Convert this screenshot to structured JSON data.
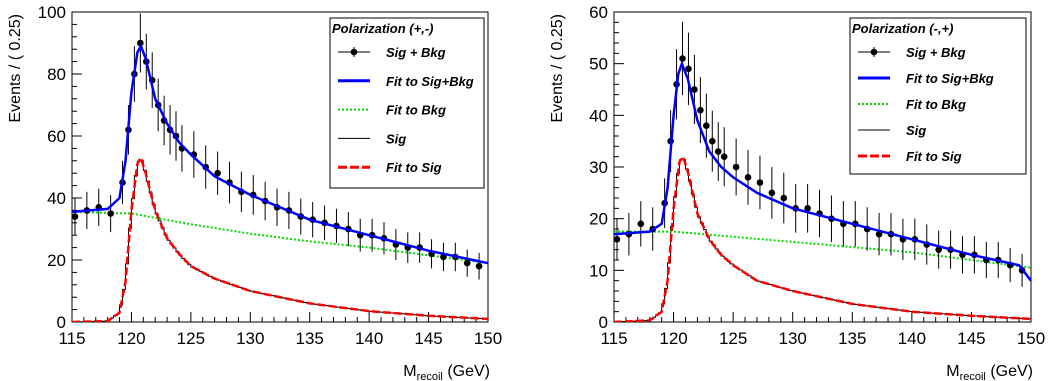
{
  "chart_data": [
    {
      "type": "line",
      "xlabel": "M",
      "xlabel_sub": "recoil",
      "xlabel_unit": " (GeV)",
      "ylabel": "Events / ( 0.25)",
      "xlim": [
        115,
        150
      ],
      "ylim": [
        0,
        100
      ],
      "xticks": [
        "115",
        "120",
        "125",
        "130",
        "135",
        "140",
        "145",
        "150"
      ],
      "yticks": [
        "0",
        "20",
        "40",
        "60",
        "80",
        "100"
      ],
      "legend_title": "Polarization (+,-)",
      "legend_position": "top-right",
      "legend": [
        "Sig + Bkg",
        "Fit to Sig+Bkg",
        "Fit to Bkg",
        "Sig",
        "Fit to Sig"
      ],
      "colors": {
        "data": "#000000",
        "total_fit": "#0000ff",
        "bkg_fit": "#00dd00",
        "sig_hist": "#000000",
        "sig_fit": "#ff0000"
      },
      "signal_peak": {
        "x": 120.8,
        "y": 53
      },
      "total_peak": {
        "x": 120.8,
        "y": 89
      },
      "background_fit": {
        "x": [
          115,
          120,
          125,
          130,
          135,
          140,
          145,
          150
        ],
        "y": [
          35.5,
          35,
          31.5,
          28.5,
          26,
          24,
          21.5,
          19
        ]
      },
      "total_fit": {
        "x": [
          115,
          118,
          119,
          119.5,
          120,
          120.5,
          120.8,
          121.2,
          122,
          123,
          124,
          125,
          127,
          130,
          135,
          140,
          145,
          150
        ],
        "y": [
          35.5,
          36.5,
          40,
          52,
          74,
          87,
          89,
          85,
          72,
          64,
          58,
          54,
          47,
          41,
          33,
          28,
          23,
          19
        ]
      },
      "signal_fit": {
        "x": [
          115,
          118,
          119,
          119.5,
          120,
          120.5,
          120.8,
          121.2,
          122,
          123,
          124,
          125,
          127,
          130,
          135,
          140,
          145,
          150
        ],
        "y": [
          0,
          0.3,
          3,
          13,
          36,
          51,
          53,
          48,
          36,
          27,
          22,
          18,
          14,
          10,
          6,
          3.5,
          2,
          1
        ]
      },
      "data_points": {
        "x": [
          115.25,
          116.25,
          117.25,
          118.25,
          119.25,
          119.75,
          120.25,
          120.75,
          121.25,
          121.75,
          122.25,
          122.75,
          123.25,
          123.75,
          124.25,
          125.25,
          126.25,
          127.25,
          128.25,
          129.25,
          130.25,
          131.25,
          132.25,
          133.25,
          134.25,
          135.25,
          136.25,
          137.25,
          138.25,
          139.25,
          140.25,
          141.25,
          142.25,
          143.25,
          144.25,
          145.25,
          146.25,
          147.25,
          148.25,
          149.25
        ],
        "y": [
          34,
          36,
          37,
          35,
          45,
          62,
          80,
          90,
          84,
          78,
          70,
          65,
          62,
          60,
          56,
          54,
          50,
          48,
          45,
          42,
          41,
          39,
          37,
          36,
          34,
          33,
          32,
          31,
          30,
          28,
          28,
          27,
          25,
          24,
          24,
          22,
          21,
          21,
          19,
          18
        ],
        "err": [
          6,
          6,
          6,
          6,
          7,
          8,
          9,
          9.5,
          9,
          9,
          8.5,
          8,
          8,
          8,
          7.5,
          7.5,
          7,
          7,
          6.7,
          6.5,
          6.4,
          6.2,
          6,
          6,
          5.8,
          5.7,
          5.6,
          5.5,
          5.5,
          5.3,
          5.3,
          5.2,
          5,
          4.9,
          4.9,
          4.7,
          4.6,
          4.6,
          4.4,
          4.3
        ]
      }
    },
    {
      "type": "line",
      "xlabel": "M",
      "xlabel_sub": "recoil",
      "xlabel_unit": " (GeV)",
      "ylabel": "Events / ( 0.25)",
      "xlim": [
        115,
        150
      ],
      "ylim": [
        0,
        60
      ],
      "xticks": [
        "115",
        "120",
        "125",
        "130",
        "135",
        "140",
        "145",
        "150"
      ],
      "yticks": [
        "0",
        "10",
        "20",
        "30",
        "40",
        "50",
        "60"
      ],
      "legend_title": "Polarization (-,+)",
      "legend_position": "top-right",
      "legend": [
        "Sig + Bkg",
        "Fit to Sig+Bkg",
        "Fit to Bkg",
        "Sig",
        "Fit to Sig"
      ],
      "colors": {
        "data": "#000000",
        "total_fit": "#0000ff",
        "bkg_fit": "#00dd00",
        "sig_hist": "#000000",
        "sig_fit": "#ff0000"
      },
      "signal_peak": {
        "x": 120.8,
        "y": 32
      },
      "total_peak": {
        "x": 120.7,
        "y": 50
      },
      "background_fit": {
        "x": [
          115,
          120,
          125,
          130,
          135,
          140,
          145,
          150
        ],
        "y": [
          17.5,
          17.5,
          16.5,
          15.5,
          14.5,
          13.5,
          12,
          10.5
        ]
      },
      "total_fit": {
        "x": [
          115,
          118,
          119,
          119.5,
          120,
          120.4,
          120.7,
          121.2,
          122,
          123,
          124,
          125,
          127,
          130,
          135,
          140,
          145,
          149,
          150
        ],
        "y": [
          17,
          17.5,
          19,
          26,
          40,
          48,
          50,
          47,
          39,
          33,
          30,
          28,
          25,
          22,
          19,
          16,
          13,
          11,
          8
        ]
      },
      "signal_fit": {
        "x": [
          115,
          118,
          119,
          119.5,
          120,
          120.5,
          120.8,
          121.2,
          122,
          123,
          124,
          125,
          127,
          130,
          135,
          140,
          145,
          150
        ],
        "y": [
          0,
          0.3,
          2,
          8,
          22,
          31,
          32,
          29,
          21,
          16,
          13,
          11,
          8,
          6,
          3.5,
          2,
          1.2,
          0.6
        ]
      },
      "data_points": {
        "x": [
          115.25,
          116.25,
          117.25,
          118.25,
          119.25,
          119.75,
          120.25,
          120.75,
          121.25,
          121.75,
          122.25,
          122.75,
          123.25,
          123.75,
          124.25,
          125.25,
          126.25,
          127.25,
          128.25,
          129.25,
          130.25,
          131.25,
          132.25,
          133.25,
          134.25,
          135.25,
          136.25,
          137.25,
          138.25,
          139.25,
          140.25,
          141.25,
          142.25,
          143.25,
          144.25,
          145.25,
          146.25,
          147.25,
          148.25,
          149.25
        ],
        "y": [
          16,
          17,
          19,
          18,
          23,
          35,
          46,
          51,
          49,
          45,
          41,
          38,
          35,
          33,
          32,
          30,
          28,
          27,
          25,
          24,
          22,
          22,
          21,
          20,
          19,
          19,
          18,
          17,
          17,
          16,
          16,
          15,
          14,
          14,
          13,
          13,
          12,
          12,
          11,
          10
        ],
        "err": [
          4,
          4.1,
          4.4,
          4.2,
          4.8,
          6,
          6.8,
          7.1,
          7,
          6.7,
          6.4,
          6.2,
          5.9,
          5.7,
          5.7,
          5.5,
          5.3,
          5.2,
          5,
          4.9,
          4.7,
          4.7,
          4.6,
          4.5,
          4.4,
          4.4,
          4.2,
          4.1,
          4.1,
          4,
          4,
          3.9,
          3.7,
          3.7,
          3.6,
          3.6,
          3.5,
          3.5,
          3.3,
          3.2
        ]
      }
    }
  ]
}
